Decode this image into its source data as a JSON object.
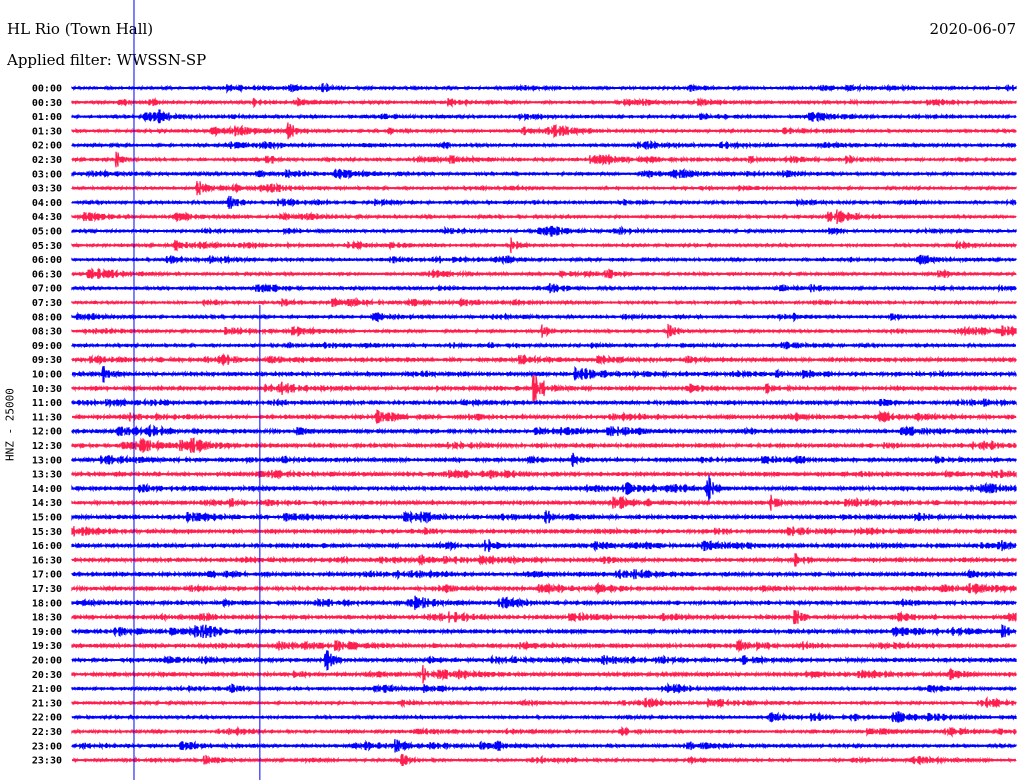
{
  "header": {
    "station": "HL Rio (Town Hall)",
    "filter": "Applied filter: WWSSN-SP",
    "date": "2020-06-07"
  },
  "chart_data": {
    "type": "line",
    "title": "HL Rio (Town Hall)",
    "subtitle": "Applied filter: WWSSN-SP",
    "ylabel": "HNZ - 25000",
    "x_range_minutes": [
      0,
      30
    ],
    "row_labels": [
      "00:00",
      "00:30",
      "01:00",
      "01:30",
      "02:00",
      "02:30",
      "03:00",
      "03:30",
      "04:00",
      "04:30",
      "05:00",
      "05:30",
      "06:00",
      "06:30",
      "07:00",
      "07:30",
      "08:00",
      "08:30",
      "09:00",
      "09:30",
      "10:00",
      "10:30",
      "11:00",
      "11:30",
      "12:00",
      "12:30",
      "13:00",
      "13:30",
      "14:00",
      "14:30",
      "15:00",
      "15:30",
      "16:00",
      "16:30",
      "17:00",
      "17:30",
      "18:00",
      "18:30",
      "19:00",
      "19:30",
      "20:00",
      "20:30",
      "21:00",
      "21:30",
      "22:00",
      "22:30",
      "23:00",
      "23:30"
    ],
    "series_colors": [
      "#0000ff",
      "#ff1f4f"
    ],
    "markers_minutes": [
      {
        "minute": 1.97,
        "from_row": 0
      },
      {
        "minute": 5.97,
        "from_row": 16
      }
    ],
    "events": [
      [
        0,
        8.0,
        6
      ],
      [
        1,
        2.5,
        4
      ],
      [
        1,
        5.8,
        4
      ],
      [
        3,
        6.9,
        9
      ],
      [
        5,
        1.4,
        9
      ],
      [
        5,
        6.2,
        6
      ],
      [
        7,
        4.0,
        9
      ],
      [
        8,
        5.0,
        9
      ],
      [
        11,
        3.3,
        6
      ],
      [
        11,
        14.0,
        7
      ],
      [
        17,
        15.0,
        6
      ],
      [
        17,
        19.0,
        7
      ],
      [
        20,
        1.0,
        7
      ],
      [
        21,
        14.7,
        14
      ],
      [
        23,
        9.7,
        7
      ],
      [
        26,
        15.9,
        6
      ],
      [
        28,
        20.2,
        14
      ],
      [
        29,
        22.2,
        7
      ],
      [
        30,
        15.1,
        6
      ],
      [
        32,
        13.2,
        7
      ],
      [
        32,
        29.5,
        8
      ],
      [
        33,
        23.0,
        9
      ],
      [
        37,
        23.0,
        7
      ],
      [
        39,
        21.2,
        7
      ],
      [
        40,
        8.1,
        9
      ],
      [
        41,
        11.2,
        6
      ],
      [
        46,
        10.3,
        7
      ],
      [
        46,
        19.5,
        8
      ],
      [
        47,
        10.5,
        8
      ],
      [
        38,
        29.6,
        6
      ]
    ]
  }
}
